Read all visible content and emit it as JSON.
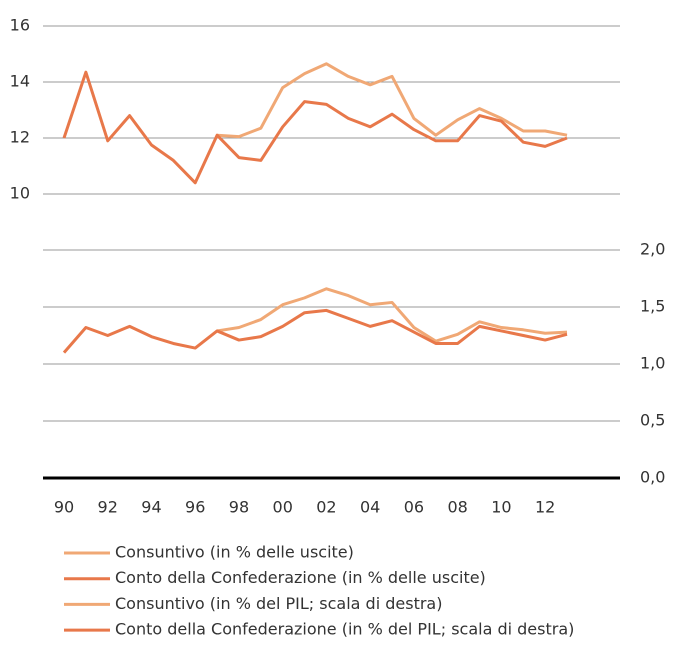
{
  "chart_data": [
    {
      "type": "line",
      "ylim": [
        10,
        16
      ],
      "yticks": [
        10,
        12,
        14,
        16
      ],
      "grid": true,
      "axis_side": "left",
      "series": [
        {
          "name": "Consuntivo (in % delle uscite)",
          "color": "#f0a875",
          "values": [
            null,
            null,
            null,
            null,
            null,
            null,
            null,
            12.1,
            12.05,
            12.35,
            13.8,
            14.3,
            14.65,
            14.2,
            13.9,
            14.2,
            12.7,
            12.1,
            12.65,
            13.05,
            12.7,
            12.25,
            12.25,
            12.1
          ]
        },
        {
          "name": "Conto della Confederazione (in % delle uscite)",
          "color": "#e8784a",
          "values": [
            12.0,
            14.35,
            11.9,
            12.8,
            11.75,
            11.2,
            10.4,
            12.1,
            11.3,
            11.2,
            12.4,
            13.3,
            13.2,
            12.7,
            12.4,
            12.85,
            12.3,
            11.9,
            11.9,
            12.8,
            12.6,
            11.85,
            11.7,
            12.0
          ]
        }
      ]
    },
    {
      "type": "line",
      "ylim": [
        0,
        2
      ],
      "grid": true,
      "axis_side": "right",
      "yticks": [
        {
          "value": 0,
          "label": "0,0"
        },
        {
          "value": 0.5,
          "label": "0,5"
        },
        {
          "value": 1,
          "label": "1,0"
        },
        {
          "value": 1.5,
          "label": "1,5"
        },
        {
          "value": 2,
          "label": "2,0"
        }
      ],
      "categories": [
        "90",
        null,
        "92",
        null,
        "94",
        null,
        "96",
        null,
        "98",
        null,
        "00",
        null,
        "02",
        null,
        "04",
        null,
        "06",
        null,
        "08",
        null,
        "10",
        null,
        "12",
        null
      ],
      "series": [
        {
          "name": "Consuntivo (in % del PIL; scala di destra)",
          "color": "#f0a875",
          "values": [
            null,
            null,
            null,
            null,
            null,
            null,
            null,
            1.29,
            1.32,
            1.39,
            1.52,
            1.58,
            1.66,
            1.6,
            1.52,
            1.54,
            1.32,
            1.2,
            1.26,
            1.37,
            1.32,
            1.3,
            1.27,
            1.28
          ]
        },
        {
          "name": "Conto della Confederazione (in % del PIL; scala di destra)",
          "color": "#e8784a",
          "values": [
            1.1,
            1.32,
            1.25,
            1.33,
            1.24,
            1.18,
            1.14,
            1.29,
            1.21,
            1.24,
            1.33,
            1.45,
            1.47,
            1.4,
            1.33,
            1.38,
            1.28,
            1.18,
            1.18,
            1.33,
            1.29,
            1.25,
            1.21,
            1.26
          ]
        }
      ]
    }
  ]
}
